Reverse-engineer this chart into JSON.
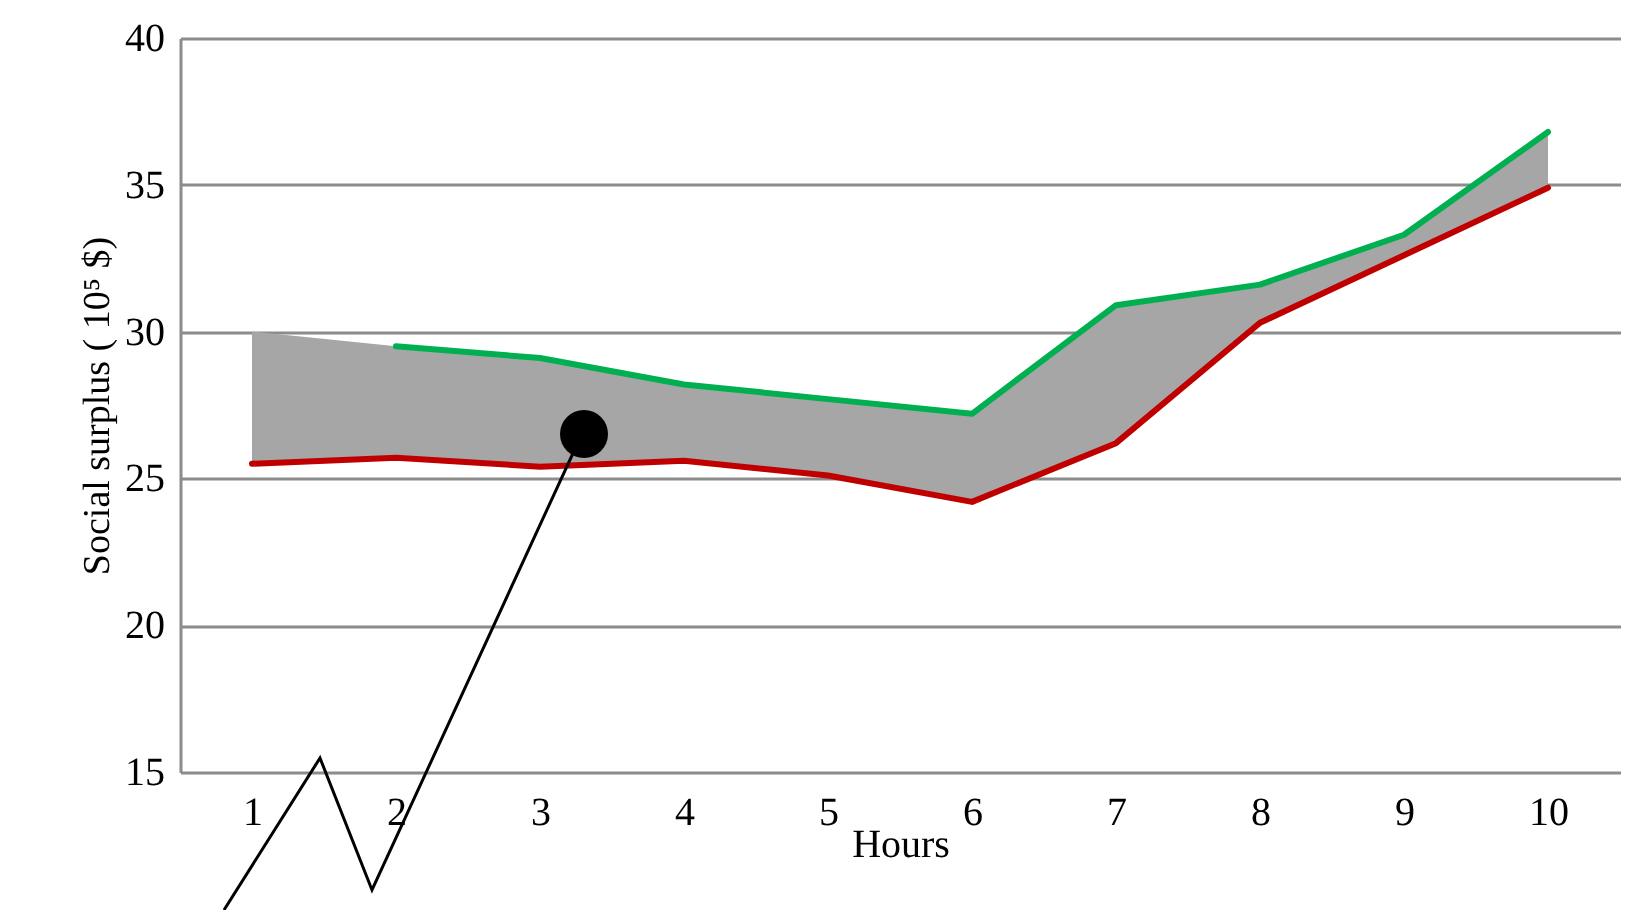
{
  "chart_data": {
    "type": "line",
    "xlabel": "Hours",
    "ylabel": "Social surplus ( 10⁵ $)",
    "categories": [
      "1",
      "2",
      "3",
      "4",
      "5",
      "6",
      "7",
      "8",
      "9",
      "10"
    ],
    "series": [
      {
        "color": "#00b050",
        "values": [
          null,
          29.5,
          29.1,
          28.2,
          27.7,
          27.2,
          30.9,
          31.6,
          33.3,
          36.8
        ]
      },
      {
        "color": "#c00000",
        "values": [
          25.5,
          25.7,
          25.4,
          25.6,
          25.1,
          24.2,
          26.2,
          30.3,
          32.6,
          34.9
        ],
        "lower": [
          25.5,
          25.7,
          25.4,
          25.6,
          25.1,
          24.2,
          26.2,
          30.3,
          32.6,
          34.9
        ],
        "upper": [
          30,
          29.5,
          29.1,
          28.2,
          27.7,
          27.2,
          30.9,
          31.6,
          33.3,
          36.8
        ]
      }
    ],
    "ylim": [
      15,
      40
    ],
    "yticks": [
      15,
      20,
      25,
      30,
      35,
      40
    ],
    "grid": "y"
  }
}
